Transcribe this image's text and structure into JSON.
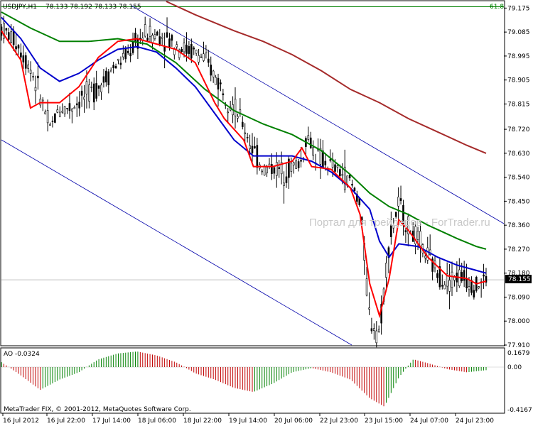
{
  "header": {
    "symbol": "USDJPY,H1",
    "ohlc": "78.133 78.192 78.133 78.155"
  },
  "fib_label": "61.8",
  "current_price": "78.155",
  "watermark": "Портал для трейдеров - ForTrader.ru",
  "footer": "MetaTrader FIX, © 2001-2012, MetaQuotes Software Corp.",
  "ao_panel": {
    "label": "AO -0.0324",
    "ticks": [
      "0.1679",
      "0.00",
      "-0.4167"
    ]
  },
  "colors": {
    "bull_ao": "#008000",
    "bear_ao": "#c00000",
    "ma_fast": "#ff0000",
    "ma_mid": "#0000cc",
    "ma_slow": "#008000",
    "ma_long": "#a52a2a",
    "channel": "#0000aa",
    "candle": "#000000"
  },
  "chart_data": {
    "type": "line",
    "y_ticks": [
      "79.175",
      "79.085",
      "78.995",
      "78.905",
      "78.815",
      "78.720",
      "78.630",
      "78.540",
      "78.450",
      "78.360",
      "78.270",
      "78.180",
      "78.090",
      "78.000",
      "77.910"
    ],
    "ylim": [
      77.91,
      79.2
    ],
    "x_ticks": [
      "16 Jul 2012",
      "16 Jul 22:00",
      "17 Jul 14:00",
      "18 Jul 06:00",
      "18 Jul 22:00",
      "19 Jul 14:00",
      "20 Jul 06:00",
      "22 Jul 23:00",
      "23 Jul 15:00",
      "24 Jul 07:00",
      "24 Jul 23:00"
    ],
    "fib_level": 79.18,
    "current": 78.155,
    "price_path": [
      [
        0,
        79.1
      ],
      [
        3,
        79.05
      ],
      [
        6,
        78.95
      ],
      [
        8,
        78.85
      ],
      [
        10,
        78.72
      ],
      [
        12,
        78.8
      ],
      [
        14,
        78.8
      ],
      [
        17,
        78.84
      ],
      [
        20,
        78.88
      ],
      [
        23,
        78.95
      ],
      [
        26,
        79.0
      ],
      [
        28,
        79.05
      ],
      [
        30,
        79.08
      ],
      [
        33,
        79.07
      ],
      [
        36,
        79.04
      ],
      [
        38,
        79.02
      ],
      [
        40,
        79.01
      ],
      [
        42,
        78.98
      ],
      [
        44,
        78.92
      ],
      [
        46,
        78.86
      ],
      [
        48,
        78.8
      ],
      [
        50,
        78.73
      ],
      [
        52,
        78.64
      ],
      [
        54,
        78.57
      ],
      [
        56,
        78.58
      ],
      [
        58,
        78.56
      ],
      [
        60,
        78.58
      ],
      [
        62,
        78.6
      ],
      [
        63,
        78.7
      ],
      [
        65,
        78.62
      ],
      [
        68,
        78.58
      ],
      [
        70,
        78.56
      ],
      [
        72,
        78.52
      ],
      [
        74,
        78.45
      ],
      [
        75,
        78.22
      ],
      [
        76,
        78.0
      ],
      [
        78,
        77.96
      ],
      [
        80,
        78.3
      ],
      [
        82,
        78.44
      ],
      [
        84,
        78.35
      ],
      [
        86,
        78.3
      ],
      [
        88,
        78.24
      ],
      [
        90,
        78.18
      ],
      [
        92,
        78.15
      ],
      [
        94,
        78.17
      ],
      [
        96,
        78.16
      ],
      [
        98,
        78.13
      ],
      [
        100,
        78.16
      ]
    ],
    "ma_fast": [
      [
        0,
        79.09
      ],
      [
        4,
        78.98
      ],
      [
        6,
        78.8
      ],
      [
        8,
        78.82
      ],
      [
        12,
        78.82
      ],
      [
        16,
        78.88
      ],
      [
        20,
        78.99
      ],
      [
        24,
        79.05
      ],
      [
        28,
        79.06
      ],
      [
        32,
        79.04
      ],
      [
        36,
        79.02
      ],
      [
        40,
        78.97
      ],
      [
        44,
        78.82
      ],
      [
        46,
        78.76
      ],
      [
        50,
        78.68
      ],
      [
        52,
        78.58
      ],
      [
        56,
        78.58
      ],
      [
        60,
        78.6
      ],
      [
        62,
        78.65
      ],
      [
        64,
        78.58
      ],
      [
        68,
        78.57
      ],
      [
        72,
        78.5
      ],
      [
        74,
        78.4
      ],
      [
        76,
        78.14
      ],
      [
        78,
        78.02
      ],
      [
        80,
        78.16
      ],
      [
        82,
        78.38
      ],
      [
        84,
        78.34
      ],
      [
        88,
        78.24
      ],
      [
        92,
        78.17
      ],
      [
        96,
        78.16
      ],
      [
        98,
        78.14
      ],
      [
        100,
        78.15
      ]
    ],
    "ma_mid": [
      [
        0,
        79.14
      ],
      [
        4,
        79.06
      ],
      [
        8,
        78.95
      ],
      [
        12,
        78.9
      ],
      [
        16,
        78.93
      ],
      [
        20,
        78.98
      ],
      [
        24,
        79.02
      ],
      [
        28,
        79.03
      ],
      [
        32,
        79.01
      ],
      [
        36,
        78.95
      ],
      [
        40,
        78.88
      ],
      [
        44,
        78.78
      ],
      [
        48,
        78.68
      ],
      [
        52,
        78.62
      ],
      [
        56,
        78.62
      ],
      [
        60,
        78.62
      ],
      [
        64,
        78.6
      ],
      [
        68,
        78.56
      ],
      [
        72,
        78.5
      ],
      [
        76,
        78.42
      ],
      [
        78,
        78.3
      ],
      [
        80,
        78.24
      ],
      [
        82,
        78.29
      ],
      [
        86,
        78.28
      ],
      [
        90,
        78.24
      ],
      [
        94,
        78.21
      ],
      [
        98,
        78.19
      ],
      [
        100,
        78.18
      ]
    ],
    "ma_slow": [
      [
        0,
        79.16
      ],
      [
        6,
        79.1
      ],
      [
        12,
        79.05
      ],
      [
        18,
        79.05
      ],
      [
        24,
        79.06
      ],
      [
        30,
        79.04
      ],
      [
        36,
        78.97
      ],
      [
        42,
        78.87
      ],
      [
        48,
        78.79
      ],
      [
        54,
        78.74
      ],
      [
        60,
        78.7
      ],
      [
        66,
        78.64
      ],
      [
        72,
        78.55
      ],
      [
        76,
        78.48
      ],
      [
        80,
        78.43
      ],
      [
        84,
        78.4
      ],
      [
        88,
        78.36
      ],
      [
        94,
        78.31
      ],
      [
        98,
        78.28
      ],
      [
        100,
        78.27
      ]
    ],
    "ma_long": [
      [
        34,
        79.2
      ],
      [
        40,
        79.15
      ],
      [
        48,
        79.09
      ],
      [
        54,
        79.05
      ],
      [
        60,
        79.0
      ],
      [
        66,
        78.94
      ],
      [
        72,
        78.87
      ],
      [
        78,
        78.82
      ],
      [
        84,
        78.76
      ],
      [
        90,
        78.71
      ],
      [
        96,
        78.66
      ],
      [
        100,
        78.63
      ]
    ]
  }
}
